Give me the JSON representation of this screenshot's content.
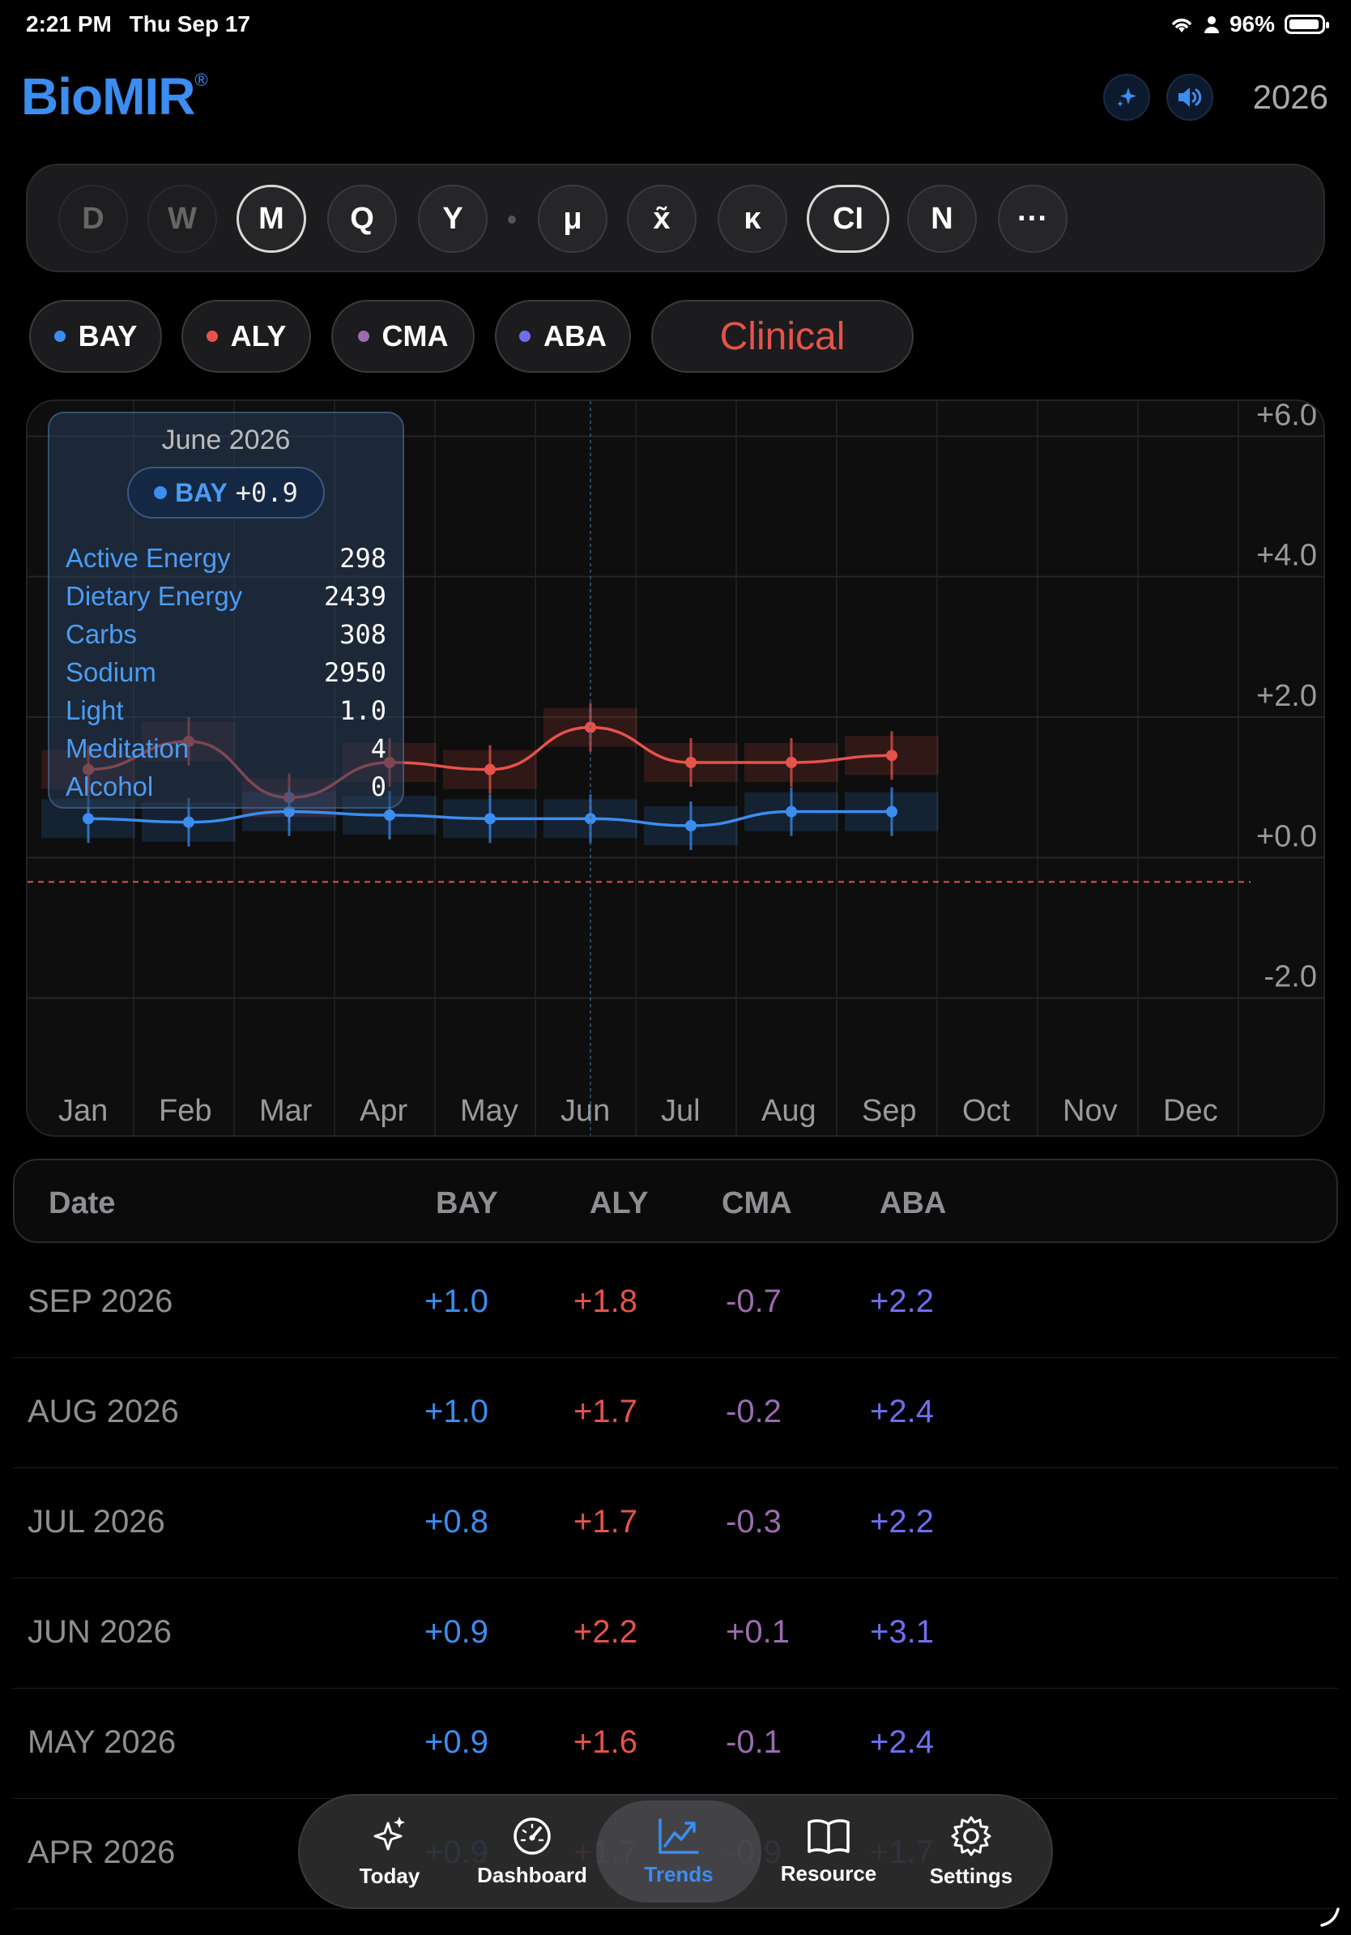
{
  "status": {
    "time": "2:21 PM",
    "date": "Thu Sep 17",
    "battery": "96%",
    "battery_level": 0.96
  },
  "header": {
    "logo": "BioMIR",
    "logo_mark": "®",
    "year": "2026"
  },
  "periods": [
    {
      "label": "D",
      "state": "dim"
    },
    {
      "label": "W",
      "state": "dim"
    },
    {
      "label": "M",
      "state": "active"
    },
    {
      "label": "Q",
      "state": "normal"
    },
    {
      "label": "Y",
      "state": "normal"
    },
    {
      "label": "μ",
      "state": "normal"
    },
    {
      "label": "x̃",
      "state": "normal"
    },
    {
      "label": "κ",
      "state": "normal"
    },
    {
      "label": "CI",
      "state": "active"
    },
    {
      "label": "N",
      "state": "normal"
    },
    {
      "label": "···",
      "state": "normal"
    }
  ],
  "series_chips": [
    {
      "label": "BAY",
      "color": "#3b8df0"
    },
    {
      "label": "ALY",
      "color": "#e5534b"
    },
    {
      "label": "CMA",
      "color": "#9b6bb0"
    },
    {
      "label": "ABA",
      "color": "#6e6ff0"
    }
  ],
  "clinical_label": "Clinical",
  "chart_data": {
    "type": "line",
    "categories": [
      "Jan",
      "Feb",
      "Mar",
      "Apr",
      "May",
      "Jun",
      "Jul",
      "Aug",
      "Sep",
      "Oct",
      "Nov",
      "Dec"
    ],
    "y_ticks": [
      "+6.0",
      "+4.0",
      "+2.0",
      "+0.0",
      "-2.0"
    ],
    "ylim": [
      -4.0,
      6.5
    ],
    "reference_line": 0.0,
    "series": [
      {
        "name": "ALY",
        "color": "#e5534b",
        "values": [
          1.6,
          2.0,
          1.2,
          1.7,
          1.6,
          2.2,
          1.7,
          1.7,
          1.8,
          null,
          null,
          null
        ]
      },
      {
        "name": "BAY",
        "color": "#3b8df0",
        "values": [
          0.9,
          0.85,
          1.0,
          0.95,
          0.9,
          0.9,
          0.8,
          1.0,
          1.0,
          null,
          null,
          null
        ]
      }
    ],
    "tooltip": {
      "title": "June 2026",
      "series": "BAY",
      "value": "+0.9",
      "rows": [
        {
          "label": "Active Energy",
          "value": "298"
        },
        {
          "label": "Dietary Energy",
          "value": "2439"
        },
        {
          "label": "Carbs",
          "value": "308"
        },
        {
          "label": "Sodium",
          "value": "2950"
        },
        {
          "label": "Light",
          "value": "1.0"
        },
        {
          "label": "Meditation",
          "value": "4"
        },
        {
          "label": "Alcohol",
          "value": "0"
        }
      ]
    }
  },
  "table": {
    "headers": [
      "Date",
      "BAY",
      "ALY",
      "CMA",
      "ABA"
    ],
    "rows": [
      [
        "SEP 2026",
        "+1.0",
        "+1.8",
        "-0.7",
        "+2.2"
      ],
      [
        "AUG 2026",
        "+1.0",
        "+1.7",
        "-0.2",
        "+2.4"
      ],
      [
        "JUL 2026",
        "+0.8",
        "+1.7",
        "-0.3",
        "+2.2"
      ],
      [
        "JUN 2026",
        "+0.9",
        "+2.2",
        "+0.1",
        "+3.1"
      ],
      [
        "MAY 2026",
        "+0.9",
        "+1.6",
        "-0.1",
        "+2.4"
      ],
      [
        "APR 2026",
        "+0.9",
        "+1.7",
        "-0.9",
        "+1.7"
      ]
    ],
    "colors": [
      "#8e8e93",
      "#3b8df0",
      "#e5534b",
      "#9b6bb0",
      "#6e6ff0"
    ]
  },
  "tabs": [
    {
      "label": "Today",
      "icon": "sparkles-icon",
      "active": false
    },
    {
      "label": "Dashboard",
      "icon": "gauge-icon",
      "active": false
    },
    {
      "label": "Trends",
      "icon": "chart-icon",
      "active": true
    },
    {
      "label": "Resource",
      "icon": "book-icon",
      "active": false
    },
    {
      "label": "Settings",
      "icon": "gear-icon",
      "active": false
    }
  ]
}
